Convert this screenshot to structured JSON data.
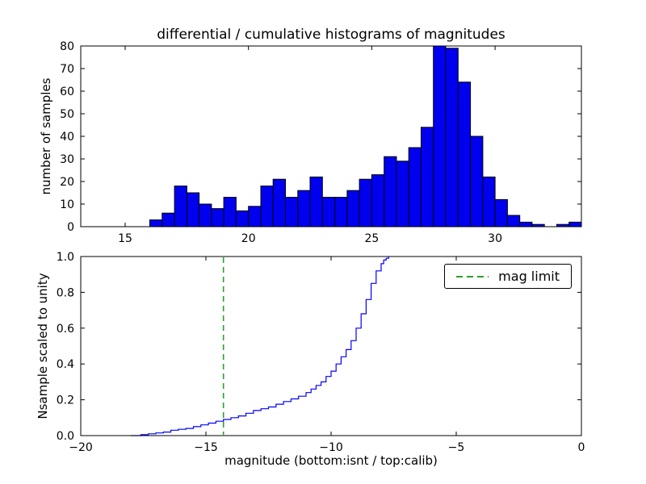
{
  "figure": {
    "background": "#ffffff",
    "title": "differential / cumulative histograms of magnitudes"
  },
  "chart_data": [
    {
      "type": "bar",
      "role": "differential-histogram",
      "title": "differential / cumulative histograms of magnitudes",
      "xlabel": "",
      "ylabel": "number of samples",
      "xlim": [
        13.2,
        33.5
      ],
      "ylim": [
        0,
        80
      ],
      "xticks": [
        15,
        20,
        25,
        30
      ],
      "xtick_labels": [
        "15",
        "20",
        "25",
        "30"
      ],
      "yticks": [
        0,
        10,
        20,
        30,
        40,
        50,
        60,
        70,
        80
      ],
      "ytick_labels": [
        "0",
        "10",
        "20",
        "30",
        "40",
        "50",
        "60",
        "70",
        "80"
      ],
      "grid": false,
      "bar_color": "#0000ee",
      "bar_edge_color": "#000000",
      "bin_start": 16.0,
      "bin_width": 0.5,
      "counts": [
        3,
        6,
        18,
        15,
        10,
        8,
        13,
        7,
        9,
        18,
        21,
        13,
        16,
        22,
        13,
        13,
        16,
        21,
        23,
        31,
        29,
        35,
        44,
        80,
        79,
        64,
        40,
        22,
        12,
        5,
        2,
        1,
        0,
        1,
        2
      ]
    },
    {
      "type": "line",
      "role": "cumulative-histogram",
      "title": "",
      "xlabel": "magnitude (bottom:isnt / top:calib)",
      "ylabel": "Nsample scaled to unity",
      "xlim": [
        -20,
        0
      ],
      "ylim": [
        0.0,
        1.0
      ],
      "xticks": [
        -20,
        -15,
        -10,
        -5,
        0
      ],
      "xtick_labels": [
        "−20",
        "−15",
        "−10",
        "−5",
        "0"
      ],
      "yticks": [
        0.0,
        0.2,
        0.4,
        0.6,
        0.8,
        1.0
      ],
      "ytick_labels": [
        "0.0",
        "0.2",
        "0.4",
        "0.6",
        "0.8",
        "1.0"
      ],
      "grid": false,
      "line_color": "#0000ff",
      "step": true,
      "x": [
        -18.0,
        -17.6,
        -17.3,
        -17.0,
        -16.7,
        -16.4,
        -16.1,
        -15.8,
        -15.5,
        -15.2,
        -14.9,
        -14.6,
        -14.3,
        -14.0,
        -13.7,
        -13.4,
        -13.1,
        -12.8,
        -12.5,
        -12.2,
        -11.9,
        -11.6,
        -11.3,
        -11.0,
        -10.8,
        -10.6,
        -10.4,
        -10.2,
        -10.0,
        -9.8,
        -9.6,
        -9.4,
        -9.2,
        -9.0,
        -8.8,
        -8.6,
        -8.4,
        -8.2,
        -8.0,
        -7.9,
        -7.8,
        -7.7
      ],
      "y": [
        0.0,
        0.005,
        0.01,
        0.015,
        0.02,
        0.03,
        0.035,
        0.04,
        0.05,
        0.06,
        0.07,
        0.08,
        0.09,
        0.1,
        0.11,
        0.125,
        0.14,
        0.15,
        0.16,
        0.175,
        0.19,
        0.205,
        0.22,
        0.24,
        0.26,
        0.28,
        0.3,
        0.33,
        0.36,
        0.4,
        0.44,
        0.48,
        0.53,
        0.6,
        0.68,
        0.76,
        0.85,
        0.92,
        0.96,
        0.98,
        0.99,
        1.0
      ],
      "vline": {
        "x": -14.3,
        "color": "#2ca02c",
        "style": "dashed",
        "label": "mag limit"
      },
      "legend": {
        "position": "upper right",
        "entries": [
          {
            "label": "mag limit",
            "style": "dashed",
            "color": "#2ca02c"
          }
        ]
      }
    }
  ]
}
